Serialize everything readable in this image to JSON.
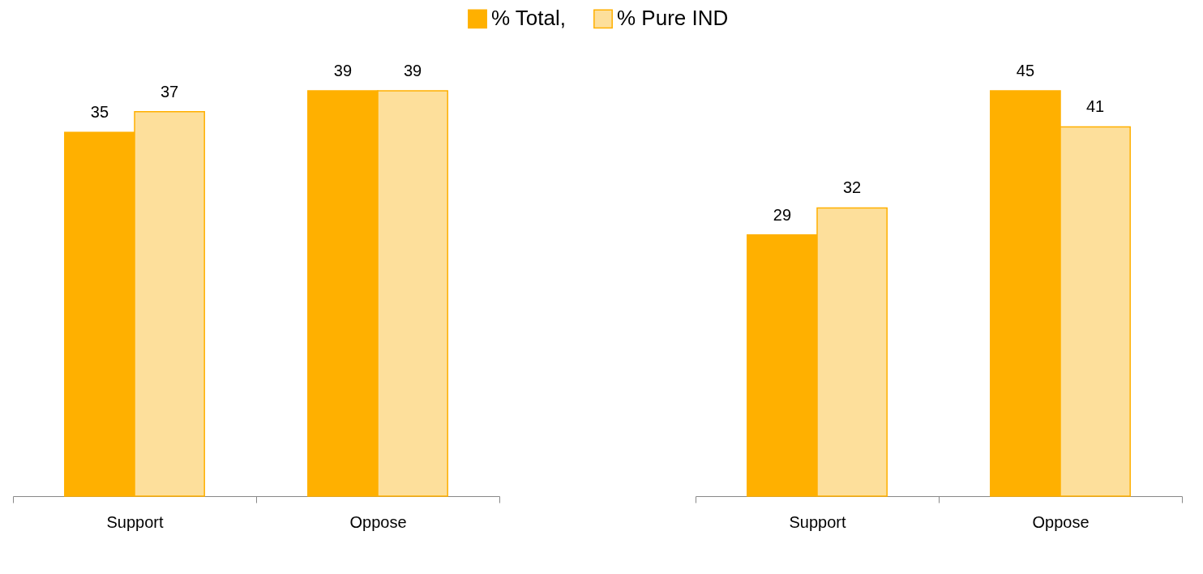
{
  "chart_data": [
    {
      "type": "bar",
      "categories": [
        "Support",
        "Oppose"
      ],
      "data_labels": true,
      "legend": "top",
      "series": [
        {
          "name": "% Total,",
          "color": "#ffb000",
          "values": [
            35,
            39
          ]
        },
        {
          "name": "% Pure IND",
          "color": "#fddf9b",
          "values": [
            37,
            39
          ]
        }
      ]
    },
    {
      "type": "bar",
      "categories": [
        "Support",
        "Oppose"
      ],
      "data_labels": true,
      "legend": "top",
      "series": [
        {
          "name": "% Total,",
          "color": "#ffb000",
          "values": [
            29,
            45
          ]
        },
        {
          "name": "% Pure IND",
          "color": "#fddf9b",
          "values": [
            32,
            41
          ]
        }
      ]
    }
  ]
}
